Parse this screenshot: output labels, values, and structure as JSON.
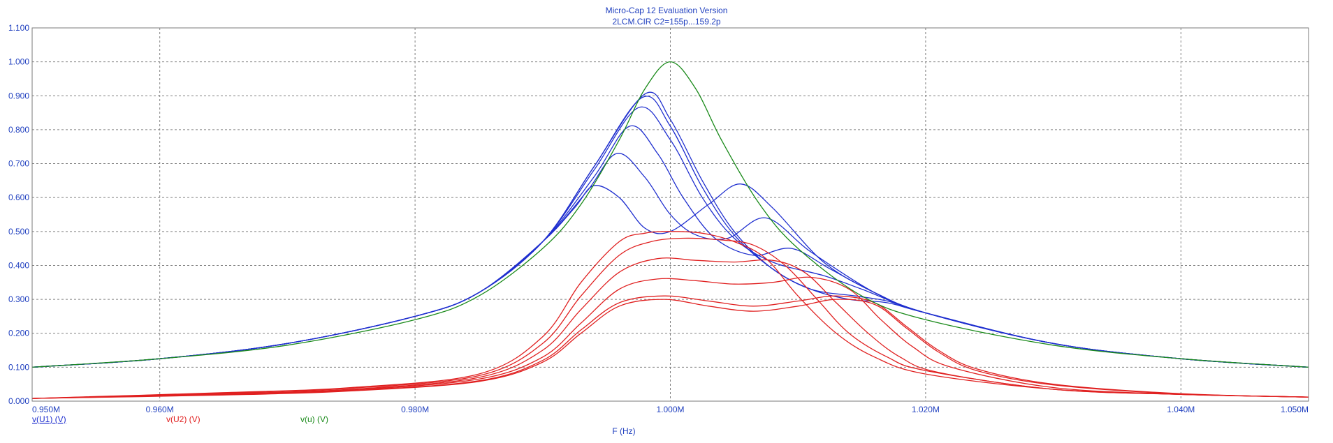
{
  "chart_data": {
    "type": "line",
    "title": "Micro-Cap 12 Evaluation Version",
    "subtitle": "2LCM.CIR C2=155p...159.2p",
    "xlabel": "F (Hz)",
    "ylabel": "",
    "xlim": [
      950000,
      1050000
    ],
    "ylim": [
      0,
      1.1
    ],
    "x_ticks": [
      950000,
      960000,
      980000,
      1000000,
      1020000,
      1040000,
      1050000
    ],
    "x_tick_labels": [
      "0.950M",
      "0.960M",
      "0.980M",
      "1.000M",
      "1.020M",
      "1.040M",
      "1.050M"
    ],
    "y_ticks": [
      0,
      0.1,
      0.2,
      0.3,
      0.4,
      0.5,
      0.6,
      0.7,
      0.8,
      0.9,
      1.0,
      1.1
    ],
    "y_tick_labels": [
      "0.000",
      "0.100",
      "0.200",
      "0.300",
      "0.400",
      "0.500",
      "0.600",
      "0.700",
      "0.800",
      "0.900",
      "1.000",
      "1.100"
    ],
    "grid": true,
    "legend": [
      {
        "label": "v(U1) (V)",
        "color": "#1f2fcf"
      },
      {
        "label": "v(U2) (V)",
        "color": "#e02020"
      },
      {
        "label": "v(u) (V)",
        "color": "#1a8a1a"
      }
    ],
    "colors": {
      "u1": "#1f2fcf",
      "u2": "#e02020",
      "u": "#1a8a1a",
      "axis_text": "#1f3fbf",
      "grid": "#808080"
    },
    "series": [
      {
        "name": "v(u) (V)",
        "group": "u",
        "x": [
          950000,
          960000,
          970000,
          980000,
          985000,
          990000,
          993000,
          996000,
          998000,
          1000000,
          1002000,
          1004000,
          1007000,
          1010000,
          1015000,
          1020000,
          1030000,
          1040000,
          1050000
        ],
        "y": [
          0.1,
          0.125,
          0.165,
          0.24,
          0.31,
          0.45,
          0.58,
          0.77,
          0.92,
          1.0,
          0.92,
          0.77,
          0.58,
          0.45,
          0.31,
          0.24,
          0.165,
          0.125,
          0.1
        ]
      },
      {
        "name": "v(U1) (V)",
        "group": "u1",
        "x": [
          950000,
          960000,
          970000,
          980000,
          985000,
          990000,
          992500,
          994000,
          996000,
          998000,
          1000000,
          1003000,
          1005500,
          1008000,
          1012000,
          1016000,
          1020000,
          1030000,
          1040000,
          1050000
        ],
        "y": [
          0.1,
          0.125,
          0.17,
          0.25,
          0.32,
          0.47,
          0.57,
          0.635,
          0.6,
          0.51,
          0.5,
          0.58,
          0.64,
          0.57,
          0.41,
          0.32,
          0.26,
          0.17,
          0.125,
          0.1
        ]
      },
      {
        "name": "v(U1) (V)",
        "group": "u1",
        "x": [
          950000,
          960000,
          970000,
          980000,
          985000,
          990000,
          993500,
          995800,
          998000,
          1000000,
          1002000,
          1004500,
          1007500,
          1011000,
          1016000,
          1020000,
          1030000,
          1040000,
          1050000
        ],
        "y": [
          0.1,
          0.125,
          0.17,
          0.25,
          0.32,
          0.47,
          0.62,
          0.73,
          0.66,
          0.55,
          0.49,
          0.48,
          0.54,
          0.44,
          0.32,
          0.26,
          0.17,
          0.125,
          0.1
        ]
      },
      {
        "name": "v(U1) (V)",
        "group": "u1",
        "x": [
          950000,
          960000,
          970000,
          980000,
          985000,
          990000,
          994000,
          996800,
          999000,
          1001000,
          1003500,
          1006500,
          1009500,
          1012500,
          1016000,
          1020000,
          1030000,
          1040000,
          1050000
        ],
        "y": [
          0.1,
          0.125,
          0.17,
          0.25,
          0.32,
          0.47,
          0.66,
          0.81,
          0.73,
          0.6,
          0.48,
          0.43,
          0.45,
          0.39,
          0.32,
          0.26,
          0.17,
          0.125,
          0.1
        ]
      },
      {
        "name": "v(U1) (V)",
        "group": "u1",
        "x": [
          950000,
          960000,
          970000,
          980000,
          985000,
          990000,
          994000,
          997500,
          1000000,
          1002500,
          1005000,
          1008000,
          1012000,
          1015000,
          1020000,
          1030000,
          1040000,
          1050000
        ],
        "y": [
          0.1,
          0.125,
          0.17,
          0.25,
          0.32,
          0.47,
          0.68,
          0.865,
          0.77,
          0.6,
          0.48,
          0.41,
          0.37,
          0.33,
          0.26,
          0.17,
          0.125,
          0.1
        ]
      },
      {
        "name": "v(U1) (V)",
        "group": "u1",
        "x": [
          950000,
          960000,
          970000,
          980000,
          985000,
          990000,
          994000,
          997800,
          1000000,
          1002500,
          1005000,
          1008000,
          1011000,
          1014500,
          1017000,
          1020000,
          1030000,
          1040000,
          1050000
        ],
        "y": [
          0.1,
          0.125,
          0.17,
          0.25,
          0.32,
          0.47,
          0.69,
          0.895,
          0.81,
          0.63,
          0.49,
          0.39,
          0.33,
          0.31,
          0.295,
          0.26,
          0.17,
          0.125,
          0.1
        ]
      },
      {
        "name": "v(U1) (V)",
        "group": "u1",
        "x": [
          950000,
          960000,
          970000,
          980000,
          985000,
          990000,
          994000,
          998000,
          1000000,
          1002500,
          1005000,
          1008000,
          1011000,
          1014000,
          1017000,
          1020000,
          1030000,
          1040000,
          1050000
        ],
        "y": [
          0.1,
          0.125,
          0.17,
          0.25,
          0.32,
          0.47,
          0.69,
          0.905,
          0.83,
          0.65,
          0.5,
          0.39,
          0.33,
          0.3,
          0.29,
          0.26,
          0.17,
          0.125,
          0.1
        ]
      },
      {
        "name": "v(U2) (V)",
        "group": "u2",
        "x": [
          950000,
          965000,
          975000,
          985000,
          990000,
          993000,
          996000,
          998000,
          1000000,
          1002500,
          1005000,
          1007500,
          1010000,
          1013000,
          1016000,
          1020000,
          1030000,
          1040000,
          1050000
        ],
        "y": [
          0.008,
          0.025,
          0.04,
          0.08,
          0.19,
          0.35,
          0.47,
          0.495,
          0.5,
          0.495,
          0.47,
          0.42,
          0.31,
          0.2,
          0.13,
          0.08,
          0.035,
          0.02,
          0.012
        ]
      },
      {
        "name": "v(U2) (V)",
        "group": "u2",
        "x": [
          950000,
          965000,
          975000,
          985000,
          990000,
          993000,
          996000,
          998500,
          1001000,
          1004000,
          1006500,
          1009000,
          1011500,
          1014000,
          1017000,
          1020000,
          1030000,
          1040000,
          1050000
        ],
        "y": [
          0.008,
          0.024,
          0.038,
          0.075,
          0.17,
          0.31,
          0.43,
          0.47,
          0.48,
          0.475,
          0.46,
          0.4,
          0.3,
          0.2,
          0.13,
          0.09,
          0.035,
          0.02,
          0.012
        ]
      },
      {
        "name": "v(U2) (V)",
        "group": "u2",
        "x": [
          950000,
          965000,
          975000,
          985000,
          990000,
          993000,
          996000,
          999000,
          1002000,
          1005000,
          1008000,
          1010500,
          1013000,
          1015500,
          1018000,
          1021000,
          1030000,
          1040000,
          1050000
        ],
        "y": [
          0.008,
          0.022,
          0.035,
          0.07,
          0.15,
          0.27,
          0.38,
          0.42,
          0.415,
          0.41,
          0.415,
          0.38,
          0.29,
          0.2,
          0.13,
          0.085,
          0.035,
          0.02,
          0.012
        ]
      },
      {
        "name": "v(U2) (V)",
        "group": "u2",
        "x": [
          950000,
          965000,
          975000,
          985000,
          990000,
          993000,
          996000,
          999000,
          1002000,
          1005000,
          1008000,
          1011000,
          1014000,
          1016500,
          1019000,
          1022000,
          1030000,
          1040000,
          1050000
        ],
        "y": [
          0.008,
          0.02,
          0.033,
          0.065,
          0.13,
          0.23,
          0.33,
          0.36,
          0.355,
          0.345,
          0.35,
          0.365,
          0.33,
          0.24,
          0.16,
          0.1,
          0.04,
          0.02,
          0.012
        ]
      },
      {
        "name": "v(U2) (V)",
        "group": "u2",
        "x": [
          950000,
          965000,
          975000,
          985000,
          990000,
          993000,
          996000,
          999500,
          1003000,
          1006500,
          1010000,
          1013000,
          1016000,
          1018500,
          1021000,
          1024000,
          1030000,
          1040000,
          1050000
        ],
        "y": [
          0.008,
          0.019,
          0.031,
          0.06,
          0.12,
          0.21,
          0.29,
          0.31,
          0.295,
          0.28,
          0.295,
          0.31,
          0.29,
          0.22,
          0.15,
          0.095,
          0.05,
          0.022,
          0.012
        ]
      },
      {
        "name": "v(U2) (V)",
        "group": "u2",
        "x": [
          950000,
          965000,
          975000,
          985000,
          990000,
          993000,
          996000,
          999500,
          1003000,
          1006500,
          1010000,
          1013000,
          1016000,
          1018500,
          1021000,
          1024000,
          1030000,
          1040000,
          1050000
        ],
        "y": [
          0.008,
          0.018,
          0.03,
          0.058,
          0.115,
          0.2,
          0.28,
          0.3,
          0.28,
          0.265,
          0.28,
          0.3,
          0.285,
          0.215,
          0.145,
          0.09,
          0.048,
          0.021,
          0.012
        ]
      }
    ]
  }
}
